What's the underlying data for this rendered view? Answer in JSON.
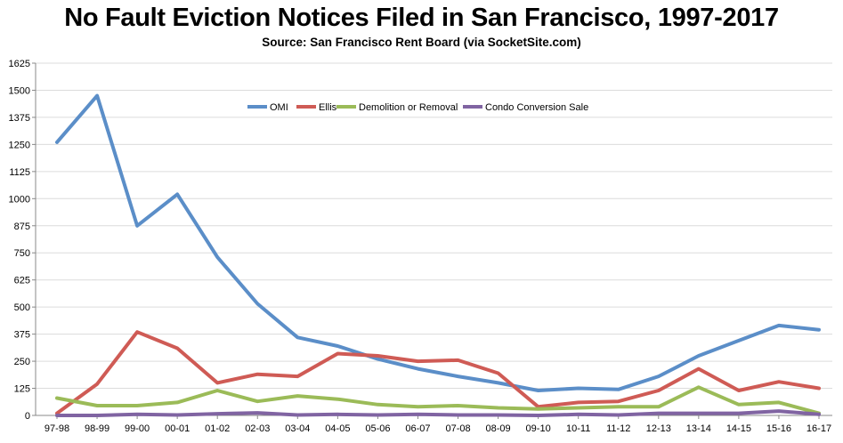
{
  "chart_data": {
    "type": "line",
    "title": "No Fault Eviction Notices Filed in San Francisco, 1997-2017",
    "subtitle": "Source: San Francisco Rent Board (via SocketSite.com)",
    "categories": [
      "97-98",
      "98-99",
      "99-00",
      "00-01",
      "01-02",
      "02-03",
      "03-04",
      "04-05",
      "05-06",
      "06-07",
      "07-08",
      "08-09",
      "09-10",
      "10-11",
      "11-12",
      "12-13",
      "13-14",
      "14-15",
      "15-16",
      "16-17"
    ],
    "yticks": [
      "0",
      "125",
      "250",
      "375",
      "500",
      "625",
      "750",
      "875",
      "1000",
      "1125",
      "1250",
      "1375",
      "1500",
      "1625"
    ],
    "ylim": [
      0,
      1625
    ],
    "legend_position": "top-center",
    "grid": "horizontal",
    "series": [
      {
        "name": "OMI",
        "color": "#5b8ec8",
        "values": [
          1260,
          1475,
          875,
          1020,
          730,
          515,
          360,
          320,
          260,
          215,
          180,
          150,
          115,
          125,
          120,
          180,
          275,
          345,
          415,
          395
        ]
      },
      {
        "name": "Ellis",
        "color": "#cf5b55",
        "values": [
          10,
          145,
          385,
          310,
          150,
          190,
          180,
          285,
          275,
          250,
          255,
          195,
          40,
          60,
          65,
          115,
          215,
          115,
          155,
          125
        ]
      },
      {
        "name": "Demolition or Removal",
        "color": "#9bbb58",
        "values": [
          80,
          45,
          45,
          60,
          115,
          65,
          90,
          75,
          50,
          40,
          45,
          35,
          30,
          35,
          40,
          40,
          130,
          50,
          60,
          10
        ]
      },
      {
        "name": "Condo Conversion Sale",
        "color": "#8064a2",
        "values": [
          0,
          0,
          5,
          2,
          8,
          12,
          2,
          5,
          2,
          5,
          2,
          2,
          0,
          5,
          2,
          10,
          10,
          10,
          20,
          5
        ]
      }
    ]
  }
}
